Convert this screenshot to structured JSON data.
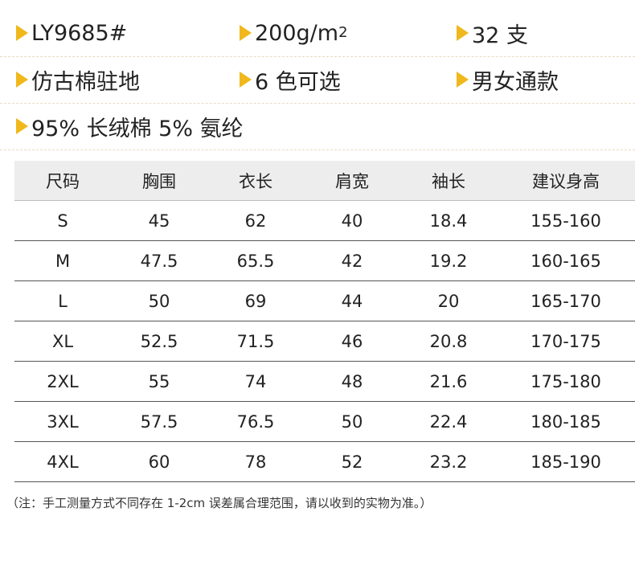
{
  "specs": {
    "rows": [
      [
        {
          "text": "LY9685#"
        },
        {
          "text": "200g/m",
          "sup": "2"
        },
        {
          "text": "32 支"
        }
      ],
      [
        {
          "text": "仿古棉驻地"
        },
        {
          "text": "6 色可选"
        },
        {
          "text": "男女通款"
        }
      ],
      [
        {
          "text": "95% 长绒棉 5% 氨纶"
        }
      ]
    ]
  },
  "table": {
    "headers": [
      "尺码",
      "胸围",
      "衣长",
      "肩宽",
      "袖长",
      "建议身高"
    ],
    "rows": [
      [
        "S",
        "45",
        "62",
        "40",
        "18.4",
        "155-160"
      ],
      [
        "M",
        "47.5",
        "65.5",
        "42",
        "19.2",
        "160-165"
      ],
      [
        "L",
        "50",
        "69",
        "44",
        "20",
        "165-170"
      ],
      [
        "XL",
        "52.5",
        "71.5",
        "46",
        "20.8",
        "170-175"
      ],
      [
        "2XL",
        "55",
        "74",
        "48",
        "21.6",
        "175-180"
      ],
      [
        "3XL",
        "57.5",
        "76.5",
        "50",
        "22.4",
        "180-185"
      ],
      [
        "4XL",
        "60",
        "78",
        "52",
        "23.2",
        "185-190"
      ]
    ]
  },
  "note": "（注：手工测量方式不同存在 1-2cm 误差属合理范围，请以收到的实物为准。）",
  "colors": {
    "accent": "#f0b81c",
    "header_bg": "#ededed"
  }
}
